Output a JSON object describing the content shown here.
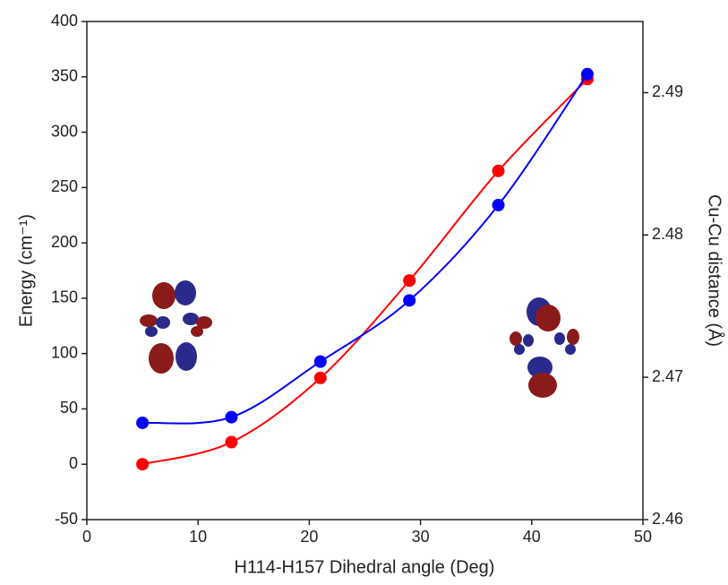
{
  "chart_data": {
    "type": "scatter",
    "x_label": "H114-H157 Dihedral angle (Deg)",
    "y_label": "Energy (cm⁻¹)",
    "y2_label": "Cu-Cu distance (Å)",
    "xlim": [
      0,
      50
    ],
    "xticks": [
      0,
      10,
      20,
      30,
      40,
      50
    ],
    "ylim": [
      -50,
      400
    ],
    "yticks": [
      -50,
      0,
      50,
      100,
      150,
      200,
      250,
      300,
      350,
      400
    ],
    "y2lim": [
      2.46,
      2.495
    ],
    "y2ticks": [
      2.46,
      2.47,
      2.48,
      2.49
    ],
    "series": [
      {
        "color": "#ff0000",
        "x": [
          5,
          13,
          21,
          29,
          37,
          45
        ],
        "values": [
          0,
          20,
          78,
          166,
          265,
          348
        ]
      },
      {
        "color": "#0000ff",
        "axis": "y2",
        "x": [
          5,
          13,
          21,
          29,
          37,
          45
        ],
        "values": [
          2.4668,
          2.4672,
          2.4711,
          2.4754,
          2.4821,
          2.4913
        ]
      }
    ]
  }
}
